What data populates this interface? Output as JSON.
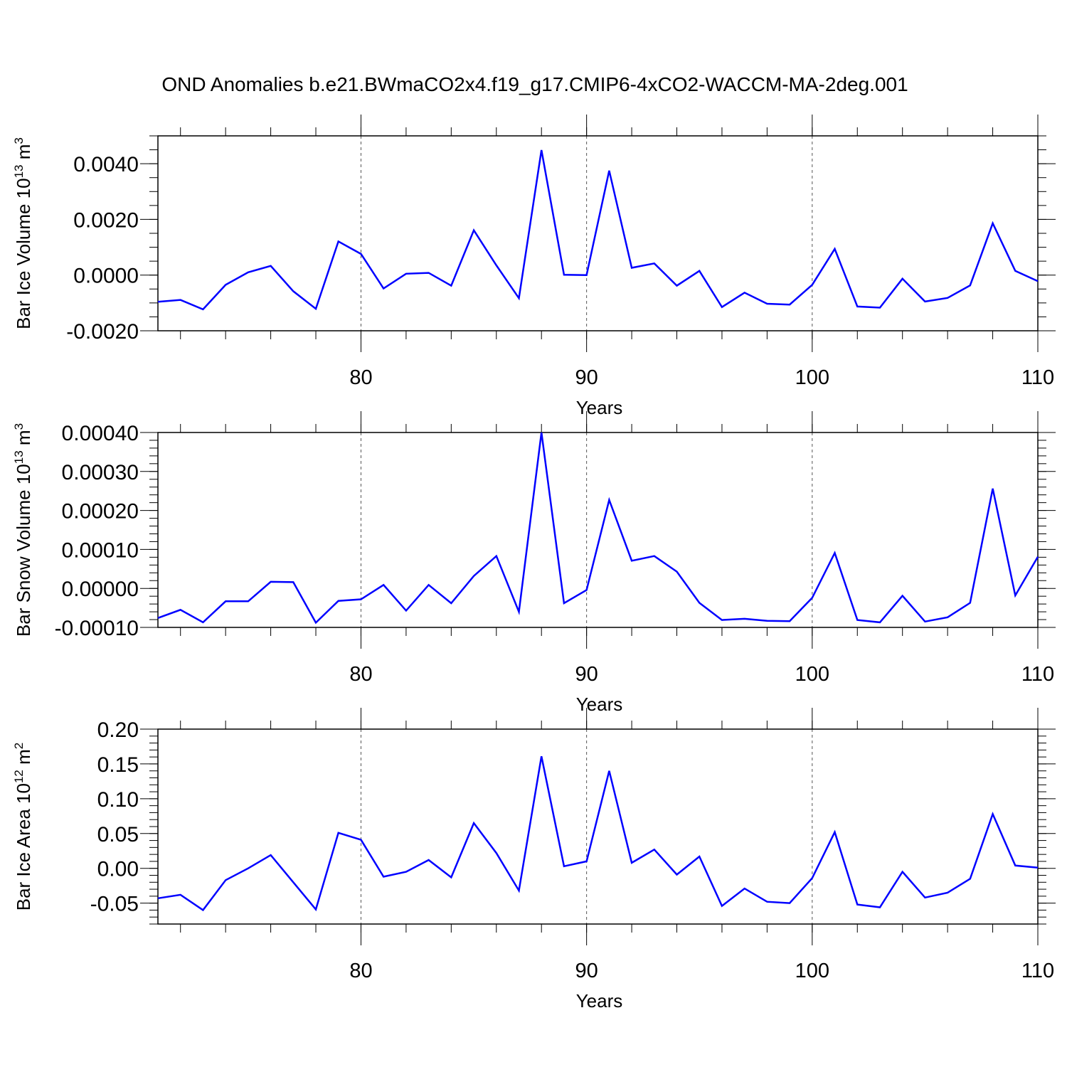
{
  "title": "OND Anomalies b.e21.BWmaCO2x4.f19_g17.CMIP6-4xCO2-WACCM-MA-2deg.001",
  "colors": {
    "series": "#0000ff",
    "axis": "#000000",
    "grid": "#555555"
  },
  "chart_data": [
    {
      "type": "line",
      "ylabel": "Bar Ice Volume 10",
      "ylabel_exp": "13",
      "ylabel_unit": " m",
      "ylabel_unit_exp": "3",
      "xlabel": "Years",
      "xlim": [
        71,
        110
      ],
      "ylim": [
        -0.002,
        0.005
      ],
      "yticks": [
        -0.002,
        0.0,
        0.002,
        0.004
      ],
      "ytick_labels": [
        "-0.0020",
        "0.0000",
        "0.0020",
        "0.0040"
      ],
      "yminor": 0.0005,
      "xticks": [
        80,
        90,
        100,
        110
      ],
      "xtick_labels": [
        "80",
        "90",
        "100",
        "110"
      ],
      "x": [
        71,
        72,
        73,
        74,
        75,
        76,
        77,
        78,
        79,
        80,
        81,
        82,
        83,
        84,
        85,
        86,
        87,
        88,
        89,
        90,
        91,
        92,
        93,
        94,
        95,
        96,
        97,
        98,
        99,
        100,
        101,
        102,
        103,
        104,
        105,
        106,
        107,
        108,
        109,
        110
      ],
      "values": [
        -0.00096,
        -0.00089,
        -0.00123,
        -0.00035,
        0.0001,
        0.00033,
        -0.00058,
        -0.00121,
        0.00121,
        0.00076,
        -0.00048,
        5e-05,
        8e-05,
        -0.00038,
        0.00161,
        0.00035,
        -0.00083,
        0.00449,
        1e-05,
        0.0,
        0.00375,
        0.00026,
        0.00042,
        -0.00038,
        0.00015,
        -0.00115,
        -0.00063,
        -0.00103,
        -0.00106,
        -0.00035,
        0.00094,
        -0.00113,
        -0.00117,
        -0.00013,
        -0.00095,
        -0.00082,
        -0.00037,
        0.00186,
        0.00015,
        -0.00022
      ]
    },
    {
      "type": "line",
      "ylabel": "Bar Snow Volume 10",
      "ylabel_exp": "13",
      "ylabel_unit": " m",
      "ylabel_unit_exp": "3",
      "xlabel": "Years",
      "xlim": [
        71,
        110
      ],
      "ylim": [
        -0.0001,
        0.0004
      ],
      "yticks": [
        -0.0001,
        0.0,
        0.0001,
        0.0002,
        0.0003,
        0.0004
      ],
      "ytick_labels": [
        "-0.00010",
        "0.00000",
        "0.00010",
        "0.00020",
        "0.00030",
        "0.00040"
      ],
      "yminor": 2e-05,
      "xticks": [
        80,
        90,
        100,
        110
      ],
      "xtick_labels": [
        "80",
        "90",
        "100",
        "110"
      ],
      "x": [
        71,
        72,
        73,
        74,
        75,
        76,
        77,
        78,
        79,
        80,
        81,
        82,
        83,
        84,
        85,
        86,
        87,
        88,
        89,
        90,
        91,
        92,
        93,
        94,
        95,
        96,
        97,
        98,
        99,
        100,
        101,
        102,
        103,
        104,
        105,
        106,
        107,
        108,
        109,
        110
      ],
      "values": [
        -7.6e-05,
        -5.5e-05,
        -8.7e-05,
        -3.3e-05,
        -3.3e-05,
        1.7e-05,
        1.6e-05,
        -8.8e-05,
        -3.2e-05,
        -2.8e-05,
        9e-06,
        -5.7e-05,
        9e-06,
        -3.8e-05,
        3.2e-05,
        8.3e-05,
        -6e-05,
        0.0004,
        -3.8e-05,
        -4e-06,
        0.000227,
        7.1e-05,
        8.3e-05,
        4.3e-05,
        -3.7e-05,
        -8.1e-05,
        -7.8e-05,
        -8.3e-05,
        -8.4e-05,
        -2.4e-05,
        9.1e-05,
        -8.1e-05,
        -8.7e-05,
        -1.9e-05,
        -8.5e-05,
        -7.4e-05,
        -3.7e-05,
        0.000256,
        -1.8e-05,
        8.1e-05
      ]
    },
    {
      "type": "line",
      "ylabel": "Bar Ice Area 10",
      "ylabel_exp": "12",
      "ylabel_unit": " m",
      "ylabel_unit_exp": "2",
      "xlabel": "Years",
      "xlim": [
        71,
        110
      ],
      "ylim": [
        -0.08,
        0.2
      ],
      "yticks": [
        -0.05,
        0.0,
        0.05,
        0.1,
        0.15,
        0.2
      ],
      "ytick_labels": [
        "-0.05",
        "0.00",
        "0.05",
        "0.10",
        "0.15",
        "0.20"
      ],
      "yminor": 0.01,
      "xticks": [
        80,
        90,
        100,
        110
      ],
      "xtick_labels": [
        "80",
        "90",
        "100",
        "110"
      ],
      "x": [
        71,
        72,
        73,
        74,
        75,
        76,
        77,
        78,
        79,
        80,
        81,
        82,
        83,
        84,
        85,
        86,
        87,
        88,
        89,
        90,
        91,
        92,
        93,
        94,
        95,
        96,
        97,
        98,
        99,
        100,
        101,
        102,
        103,
        104,
        105,
        106,
        107,
        108,
        109,
        110
      ],
      "values": [
        -0.043,
        -0.038,
        -0.06,
        -0.017,
        0.0,
        0.019,
        -0.02,
        -0.059,
        0.051,
        0.041,
        -0.012,
        -0.005,
        0.012,
        -0.013,
        0.065,
        0.022,
        -0.032,
        0.161,
        0.003,
        0.01,
        0.14,
        0.008,
        0.027,
        -0.009,
        0.017,
        -0.054,
        -0.029,
        -0.048,
        -0.05,
        -0.014,
        0.052,
        -0.052,
        -0.056,
        -0.005,
        -0.042,
        -0.035,
        -0.015,
        0.078,
        0.004,
        0.001
      ]
    }
  ]
}
